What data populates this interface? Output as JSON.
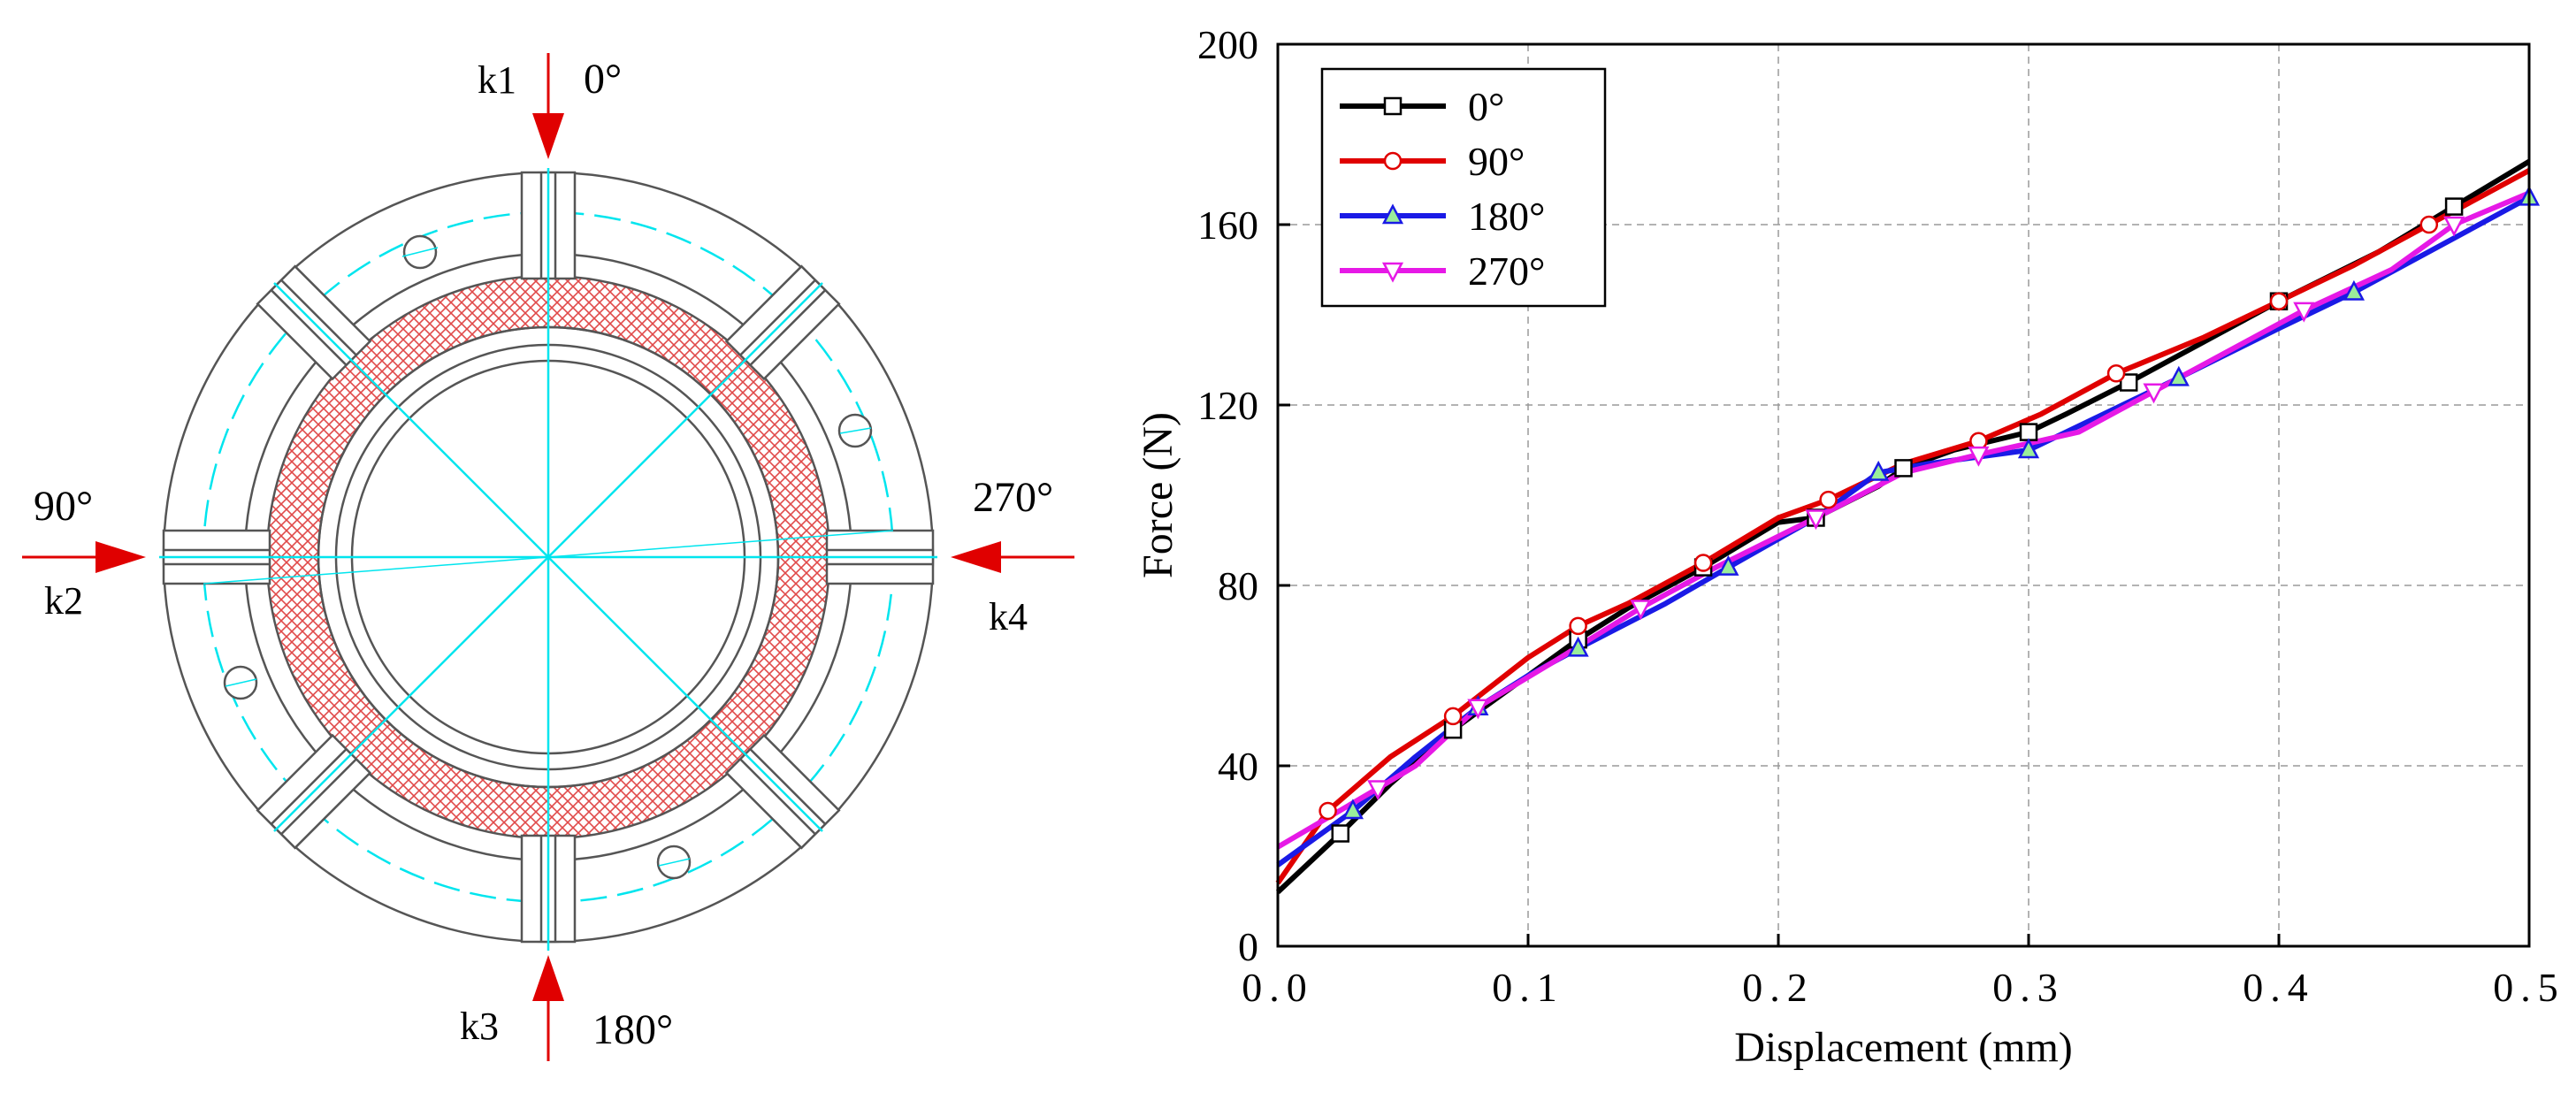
{
  "diagram": {
    "loads": [
      {
        "angle": "0°",
        "spring": "k1"
      },
      {
        "angle": "90°",
        "spring": "k2"
      },
      {
        "angle": "180°",
        "spring": "k3"
      },
      {
        "angle": "270°",
        "spring": "k4"
      }
    ],
    "colors": {
      "outline": "#555555",
      "centerline": "#00e5ee",
      "hatch": "#e04a4a",
      "arrow": "#e00000"
    }
  },
  "chart_data": {
    "type": "line",
    "xlabel": "Displacement (mm)",
    "ylabel": "Force (N)",
    "xlim": [
      0,
      0.5
    ],
    "ylim": [
      0,
      200
    ],
    "xticks": [
      0.0,
      0.1,
      0.2,
      0.3,
      0.4,
      0.5
    ],
    "xtick_labels": [
      "0.0",
      "0.1",
      "0.2",
      "0.3",
      "0.4",
      "0.5"
    ],
    "yticks": [
      0,
      40,
      80,
      120,
      160,
      200
    ],
    "ytick_labels": [
      "0",
      "40",
      "80",
      "120",
      "160",
      "200"
    ],
    "grid": true,
    "legend_position": "top-left",
    "series": [
      {
        "name": "0°",
        "color": "#000000",
        "marker": "square",
        "x": [
          0.0,
          0.025,
          0.045,
          0.07,
          0.1,
          0.12,
          0.14,
          0.17,
          0.2,
          0.215,
          0.24,
          0.25,
          0.27,
          0.3,
          0.315,
          0.34,
          0.37,
          0.4,
          0.44,
          0.47,
          0.5
        ],
        "y": [
          12,
          25,
          36,
          48,
          60,
          68,
          75,
          84,
          94,
          95,
          102,
          106,
          110,
          114,
          118,
          125,
          134,
          143,
          154,
          164,
          174
        ]
      },
      {
        "name": "90°",
        "color": "#e00000",
        "marker": "circle",
        "x": [
          0.0,
          0.02,
          0.045,
          0.07,
          0.1,
          0.12,
          0.14,
          0.17,
          0.2,
          0.22,
          0.25,
          0.28,
          0.305,
          0.335,
          0.37,
          0.4,
          0.43,
          0.46,
          0.5
        ],
        "y": [
          14,
          30,
          42,
          51,
          64,
          71,
          76,
          85,
          95,
          99,
          107,
          112,
          118,
          127,
          135,
          143,
          151,
          160,
          172
        ]
      },
      {
        "name": "180°",
        "color": "#1a1ae6",
        "marker": "triangle-up",
        "x": [
          0.0,
          0.03,
          0.055,
          0.08,
          0.1,
          0.12,
          0.155,
          0.18,
          0.215,
          0.24,
          0.26,
          0.3,
          0.33,
          0.36,
          0.4,
          0.43,
          0.46,
          0.5
        ],
        "y": [
          18,
          30,
          42,
          53,
          60,
          66,
          76,
          84,
          95,
          105,
          107,
          110,
          118,
          126,
          137,
          145,
          154,
          166
        ]
      },
      {
        "name": "270°",
        "color": "#e619e6",
        "marker": "triangle-down",
        "x": [
          0.0,
          0.04,
          0.055,
          0.08,
          0.11,
          0.145,
          0.175,
          0.215,
          0.25,
          0.28,
          0.32,
          0.35,
          0.38,
          0.41,
          0.445,
          0.47,
          0.5
        ],
        "y": [
          22,
          35,
          40,
          53,
          63,
          75,
          84,
          95,
          105,
          109,
          114,
          123,
          132,
          141,
          150,
          160,
          167
        ]
      }
    ]
  }
}
